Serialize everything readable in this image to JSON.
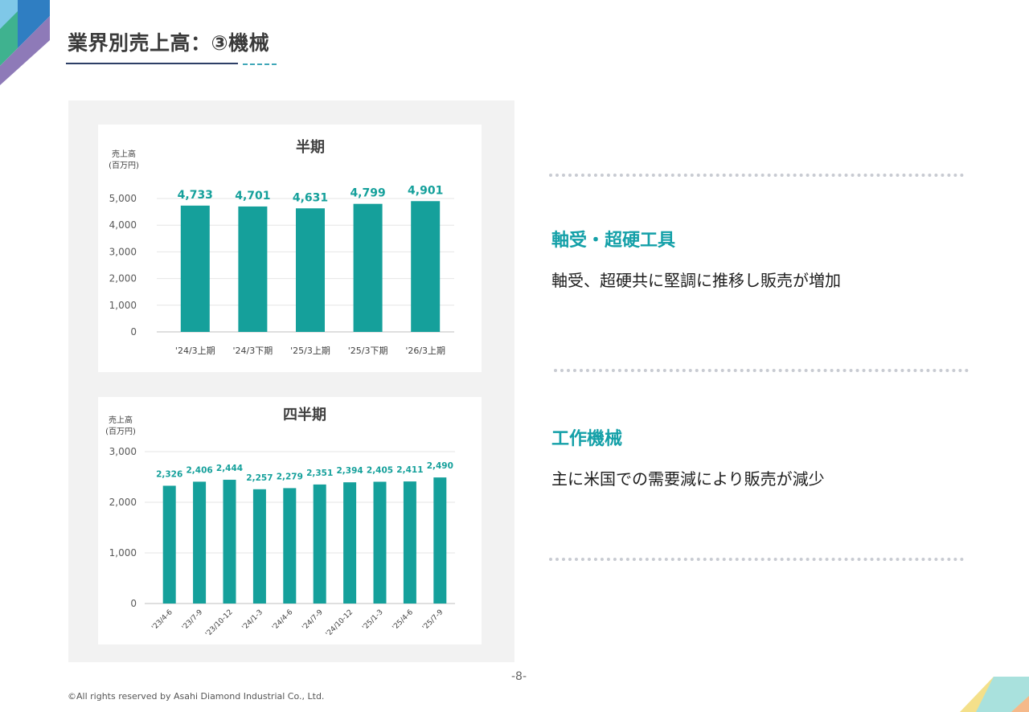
{
  "page": {
    "title": "業界別売上高：③機械",
    "page_number": "-8-",
    "copyright": "©All rights reserved by Asahi Diamond Industrial Co., Ltd."
  },
  "colors": {
    "bar": "#15a09b",
    "label": "#15a09b",
    "accent": "#14a0a8",
    "title_line": "#2d3f66"
  },
  "chart_data": [
    {
      "type": "bar",
      "title": "半期",
      "ylabel": "売上高\n(百万円)",
      "categories": [
        "'24/3上期",
        "'24/3下期",
        "'25/3上期",
        "'25/3下期",
        "'26/3上期"
      ],
      "values": [
        4733,
        4701,
        4631,
        4799,
        4901
      ],
      "value_labels": [
        "4,733",
        "4,701",
        "4,631",
        "4,799",
        "4,901"
      ],
      "ylim": [
        0,
        5000
      ],
      "yticks": [
        0,
        1000,
        2000,
        3000,
        4000,
        5000
      ],
      "ytick_labels": [
        "0",
        "1,000",
        "2,000",
        "3,000",
        "4,000",
        "5,000"
      ],
      "grid": true
    },
    {
      "type": "bar",
      "title": "四半期",
      "ylabel": "売上高\n(百万円)",
      "categories": [
        "'23/4-6",
        "'23/7-9",
        "'23/10-12",
        "'24/1-3",
        "'24/4-6",
        "'24/7-9",
        "'24/10-12",
        "'25/1-3",
        "'25/4-6",
        "'25/7-9"
      ],
      "values": [
        2326,
        2406,
        2444,
        2257,
        2279,
        2351,
        2394,
        2405,
        2411,
        2490
      ],
      "value_labels": [
        "2,326",
        "2,406",
        "2,444",
        "2,257",
        "2,279",
        "2,351",
        "2,394",
        "2,405",
        "2,411",
        "2,490"
      ],
      "ylim": [
        0,
        3000
      ],
      "yticks": [
        0,
        1000,
        2000,
        3000
      ],
      "ytick_labels": [
        "0",
        "1,000",
        "2,000",
        "3,000"
      ],
      "grid": true
    }
  ],
  "sections": [
    {
      "heading": "軸受・超硬工具",
      "text": "軸受、超硬共に堅調に推移し販売が増加"
    },
    {
      "heading": "工作機械",
      "text": "主に米国での需要減により販売が減少"
    }
  ]
}
